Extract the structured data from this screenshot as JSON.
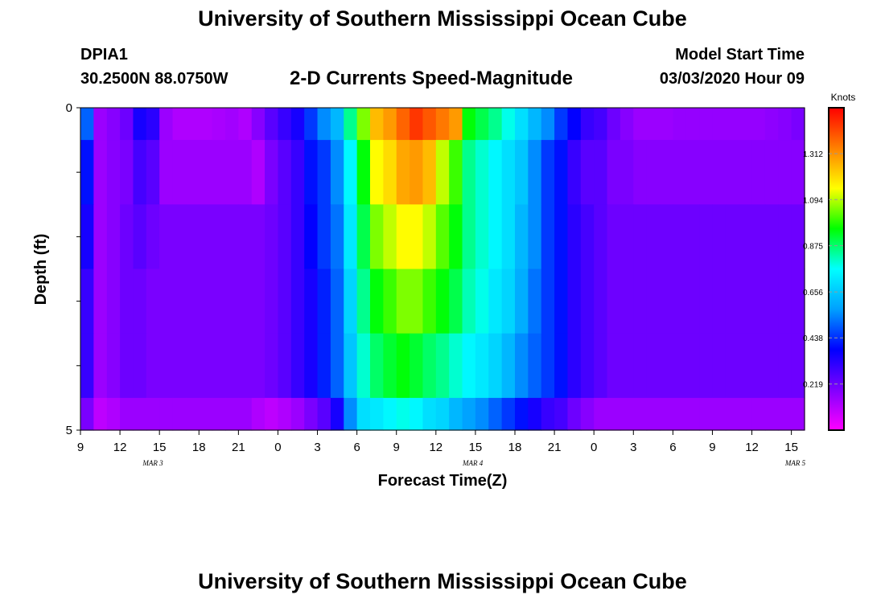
{
  "header": {
    "title": "University of Southern Mississippi Ocean Cube",
    "station_id": "DPIA1",
    "station_coords": "30.2500N 88.0750W",
    "chart_title": "2-D Currents Speed-Magnitude",
    "model_start_label": "Model Start Time",
    "model_start_value": "03/03/2020 Hour 09"
  },
  "footer": {
    "title": "University of Southern Mississippi Ocean Cube"
  },
  "chart_data": {
    "type": "heatmap",
    "title": "2-D Currents Speed-Magnitude",
    "xlabel": "Forecast Time(Z)",
    "ylabel": "Depth (ft)",
    "x_tick_labels": [
      "9",
      "12",
      "15",
      "18",
      "21",
      "0",
      "3",
      "6",
      "9",
      "12",
      "15",
      "18",
      "21",
      "0",
      "3",
      "6",
      "9",
      "12",
      "15"
    ],
    "date_labels": [
      "MAR 3",
      "MAR 4",
      "MAR 5"
    ],
    "y_tick_labels": [
      "0",
      "5"
    ],
    "ylim": [
      0,
      5
    ],
    "x_hours": [
      9,
      10,
      11,
      12,
      13,
      14,
      15,
      16,
      17,
      18,
      19,
      20,
      21,
      22,
      23,
      24,
      25,
      26,
      27,
      28,
      29,
      30,
      31,
      32,
      33,
      34,
      35,
      36,
      37,
      38,
      39,
      40,
      41,
      42,
      43,
      44,
      45,
      46,
      47,
      48,
      49,
      50,
      51,
      52,
      53,
      54,
      55,
      56,
      57,
      58,
      59,
      60,
      61,
      62,
      63
    ],
    "depth_bins": [
      "0-0.5",
      "0.5-1.5",
      "1.5-2.5",
      "2.5-3.5",
      "3.5-4.5",
      "4.5-5"
    ],
    "values": [
      [
        0.5,
        0.15,
        0.18,
        0.22,
        0.35,
        0.32,
        0.15,
        0.12,
        0.12,
        0.12,
        0.13,
        0.14,
        0.12,
        0.18,
        0.25,
        0.3,
        0.35,
        0.45,
        0.55,
        0.62,
        0.85,
        1.05,
        1.25,
        1.3,
        1.38,
        1.45,
        1.4,
        1.35,
        1.3,
        0.95,
        0.9,
        0.85,
        0.78,
        0.7,
        0.62,
        0.55,
        0.45,
        0.38,
        0.3,
        0.28,
        0.22,
        0.18,
        0.15,
        0.15,
        0.15,
        0.16,
        0.16,
        0.16,
        0.16,
        0.16,
        0.16,
        0.16,
        0.17,
        0.18,
        0.2
      ],
      [
        0.4,
        0.15,
        0.18,
        0.2,
        0.28,
        0.25,
        0.15,
        0.15,
        0.15,
        0.15,
        0.15,
        0.15,
        0.15,
        0.12,
        0.2,
        0.25,
        0.3,
        0.4,
        0.45,
        0.55,
        0.75,
        0.95,
        1.15,
        1.2,
        1.28,
        1.3,
        1.25,
        1.1,
        1.0,
        0.85,
        0.8,
        0.75,
        0.7,
        0.65,
        0.55,
        0.45,
        0.4,
        0.3,
        0.25,
        0.25,
        0.2,
        0.2,
        0.18,
        0.18,
        0.18,
        0.18,
        0.18,
        0.18,
        0.18,
        0.18,
        0.18,
        0.18,
        0.18,
        0.18,
        0.18
      ],
      [
        0.35,
        0.15,
        0.18,
        0.22,
        0.25,
        0.22,
        0.2,
        0.2,
        0.2,
        0.2,
        0.2,
        0.2,
        0.2,
        0.2,
        0.22,
        0.25,
        0.3,
        0.38,
        0.45,
        0.52,
        0.72,
        0.9,
        1.05,
        1.1,
        1.15,
        1.15,
        1.1,
        1.02,
        0.95,
        0.85,
        0.8,
        0.75,
        0.7,
        0.62,
        0.55,
        0.45,
        0.4,
        0.32,
        0.28,
        0.25,
        0.22,
        0.22,
        0.22,
        0.22,
        0.22,
        0.22,
        0.22,
        0.22,
        0.22,
        0.22,
        0.22,
        0.22,
        0.22,
        0.22,
        0.22
      ],
      [
        0.3,
        0.15,
        0.18,
        0.22,
        0.22,
        0.2,
        0.2,
        0.2,
        0.2,
        0.2,
        0.2,
        0.2,
        0.2,
        0.2,
        0.22,
        0.25,
        0.3,
        0.35,
        0.42,
        0.5,
        0.68,
        0.85,
        0.95,
        1.0,
        1.05,
        1.05,
        1.0,
        0.95,
        0.9,
        0.82,
        0.78,
        0.72,
        0.68,
        0.6,
        0.52,
        0.45,
        0.4,
        0.32,
        0.28,
        0.25,
        0.22,
        0.22,
        0.22,
        0.22,
        0.22,
        0.22,
        0.22,
        0.22,
        0.22,
        0.22,
        0.22,
        0.22,
        0.22,
        0.22,
        0.22
      ],
      [
        0.3,
        0.15,
        0.18,
        0.22,
        0.22,
        0.2,
        0.2,
        0.2,
        0.2,
        0.2,
        0.2,
        0.2,
        0.2,
        0.2,
        0.22,
        0.25,
        0.3,
        0.35,
        0.42,
        0.5,
        0.65,
        0.8,
        0.88,
        0.92,
        0.95,
        0.92,
        0.88,
        0.85,
        0.8,
        0.75,
        0.72,
        0.68,
        0.62,
        0.55,
        0.5,
        0.45,
        0.4,
        0.32,
        0.28,
        0.25,
        0.22,
        0.22,
        0.22,
        0.22,
        0.22,
        0.22,
        0.22,
        0.22,
        0.22,
        0.22,
        0.22,
        0.22,
        0.22,
        0.22,
        0.22
      ],
      [
        0.2,
        0.1,
        0.12,
        0.15,
        0.15,
        0.15,
        0.15,
        0.15,
        0.15,
        0.15,
        0.15,
        0.15,
        0.15,
        0.12,
        0.1,
        0.12,
        0.15,
        0.2,
        0.25,
        0.35,
        0.55,
        0.7,
        0.72,
        0.75,
        0.78,
        0.75,
        0.7,
        0.68,
        0.62,
        0.58,
        0.55,
        0.5,
        0.45,
        0.4,
        0.35,
        0.3,
        0.28,
        0.22,
        0.18,
        0.15,
        0.15,
        0.15,
        0.15,
        0.15,
        0.15,
        0.15,
        0.15,
        0.15,
        0.15,
        0.15,
        0.15,
        0.15,
        0.15,
        0.15,
        0.15
      ]
    ],
    "colorbar": {
      "title": "Knots",
      "tick_labels": [
        "1.312",
        "1.094",
        "0.875",
        "0.656",
        "0.438",
        "0.219"
      ],
      "tick_values": [
        1.312,
        1.094,
        0.875,
        0.656,
        0.438,
        0.219
      ],
      "range": [
        0,
        1.53
      ],
      "colors": [
        "#ff00ff",
        "#8000ff",
        "#0000ff",
        "#00a0ff",
        "#00ffff",
        "#00ff00",
        "#ffff00",
        "#ff8000",
        "#ff0000"
      ]
    }
  }
}
